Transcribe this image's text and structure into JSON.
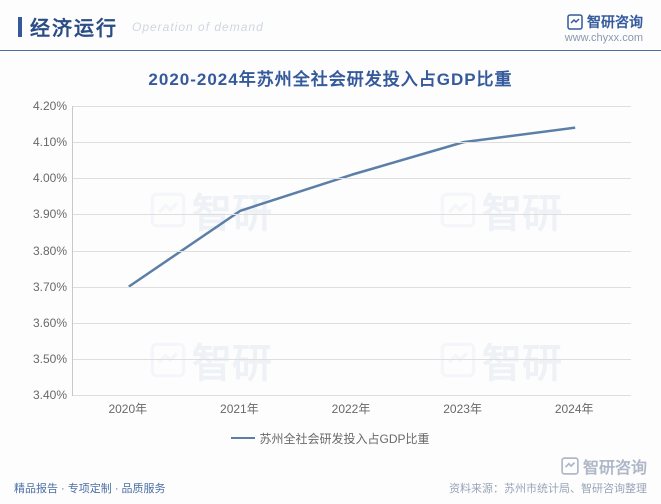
{
  "header": {
    "title": "经济运行",
    "subtitle": "Operation of demand",
    "brand": "智研咨询",
    "url": "www.chyxx.com"
  },
  "chart": {
    "type": "line",
    "title": "2020-2024年苏州全社会研发投入占GDP比重",
    "categories": [
      "2020年",
      "2021年",
      "2022年",
      "2023年",
      "2024年"
    ],
    "series_name": "苏州全社会研发投入占GDP比重",
    "values": [
      3.7,
      3.91,
      4.01,
      4.1,
      4.14
    ],
    "line_color": "#5b7fa6",
    "line_width": 2.5,
    "ylim": [
      3.4,
      4.2
    ],
    "ytick_step": 0.1,
    "ytick_labels": [
      "3.40%",
      "3.50%",
      "3.60%",
      "3.70%",
      "3.80%",
      "3.90%",
      "4.00%",
      "4.10%",
      "4.20%"
    ],
    "grid_color": "#dedede",
    "axis_color": "#c8c8c8",
    "label_color": "#696969",
    "label_fontsize": 12,
    "title_color": "#355a9c",
    "title_fontsize": 17,
    "background_color": "#fdfdfd"
  },
  "footer": {
    "tagline": "精品报告 · 专项定制 · 品质服务",
    "source": "资料来源：苏州市统计局、智研咨询整理",
    "brand": "智研咨询"
  },
  "watermark": "智研"
}
